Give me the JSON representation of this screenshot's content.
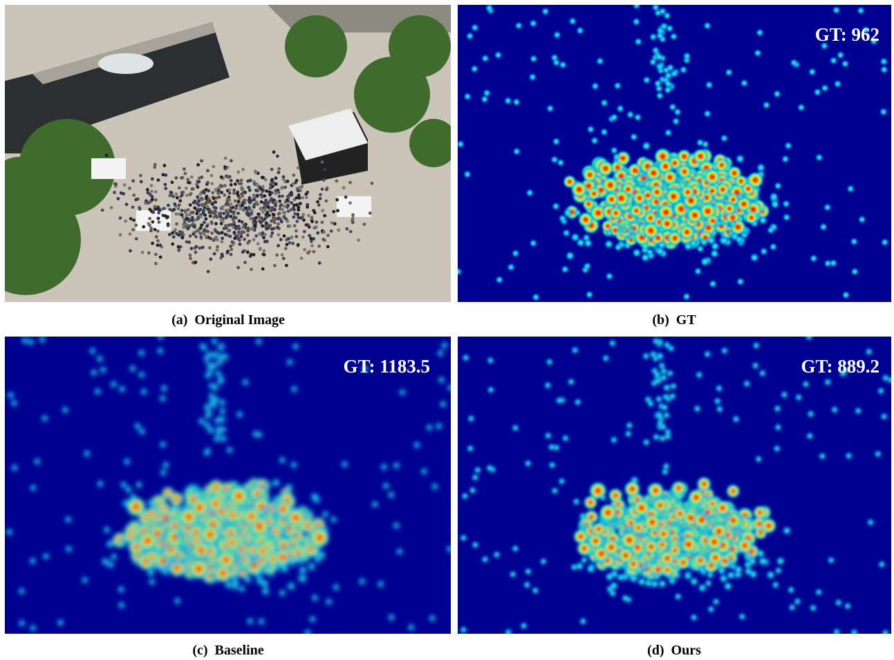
{
  "figure": {
    "panels": [
      {
        "caption": "(a)  Original Image"
      },
      {
        "caption": "(b)  GT",
        "count_label": "GT: 962"
      },
      {
        "caption": "(c)  Baseline",
        "count_label": "GT: 1183.5"
      },
      {
        "caption": "(d)  Ours",
        "count_label": "GT: 889.2"
      }
    ]
  }
}
